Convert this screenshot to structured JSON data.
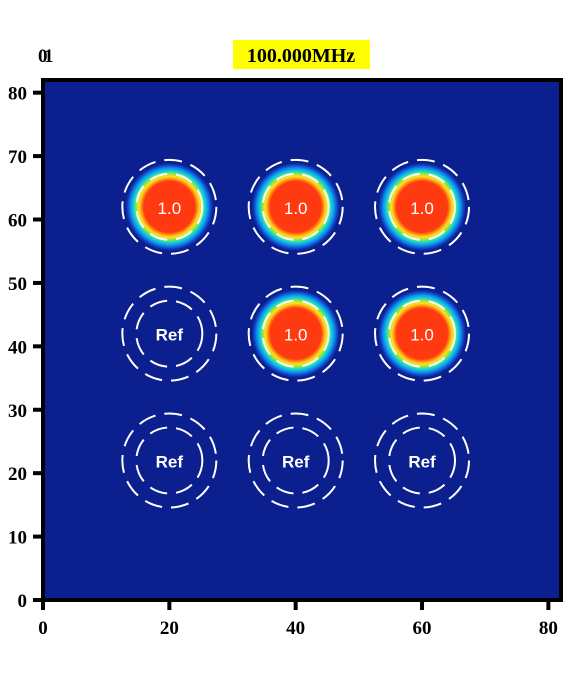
{
  "chart_data": {
    "type": "heatmap",
    "title": "100.000MHz",
    "title_background": "#ffff00",
    "corner_labels": [
      "0",
      "1"
    ],
    "xlim": [
      0,
      82
    ],
    "ylim": [
      0,
      82
    ],
    "x_ticks": [
      0,
      20,
      40,
      60,
      80
    ],
    "y_ticks": [
      0,
      10,
      20,
      30,
      40,
      50,
      60,
      70,
      80
    ],
    "colors": {
      "background": "#0b1f8f",
      "peak": "#ff3a10",
      "axis": "#000000",
      "guide_ring": "#ffffff",
      "label": "#ffffff"
    },
    "points": [
      {
        "x": 20,
        "y": 62,
        "label": "1.0",
        "value": 1.0
      },
      {
        "x": 40,
        "y": 62,
        "label": "1.0",
        "value": 1.0
      },
      {
        "x": 60,
        "y": 62,
        "label": "1.0",
        "value": 1.0
      },
      {
        "x": 20,
        "y": 42,
        "label": "Ref",
        "value": 0
      },
      {
        "x": 40,
        "y": 42,
        "label": "1.0",
        "value": 1.0
      },
      {
        "x": 60,
        "y": 42,
        "label": "1.0",
        "value": 1.0
      },
      {
        "x": 20,
        "y": 22,
        "label": "Ref",
        "value": 0
      },
      {
        "x": 40,
        "y": 22,
        "label": "Ref",
        "value": 0
      },
      {
        "x": 60,
        "y": 22,
        "label": "Ref",
        "value": 0
      }
    ]
  }
}
